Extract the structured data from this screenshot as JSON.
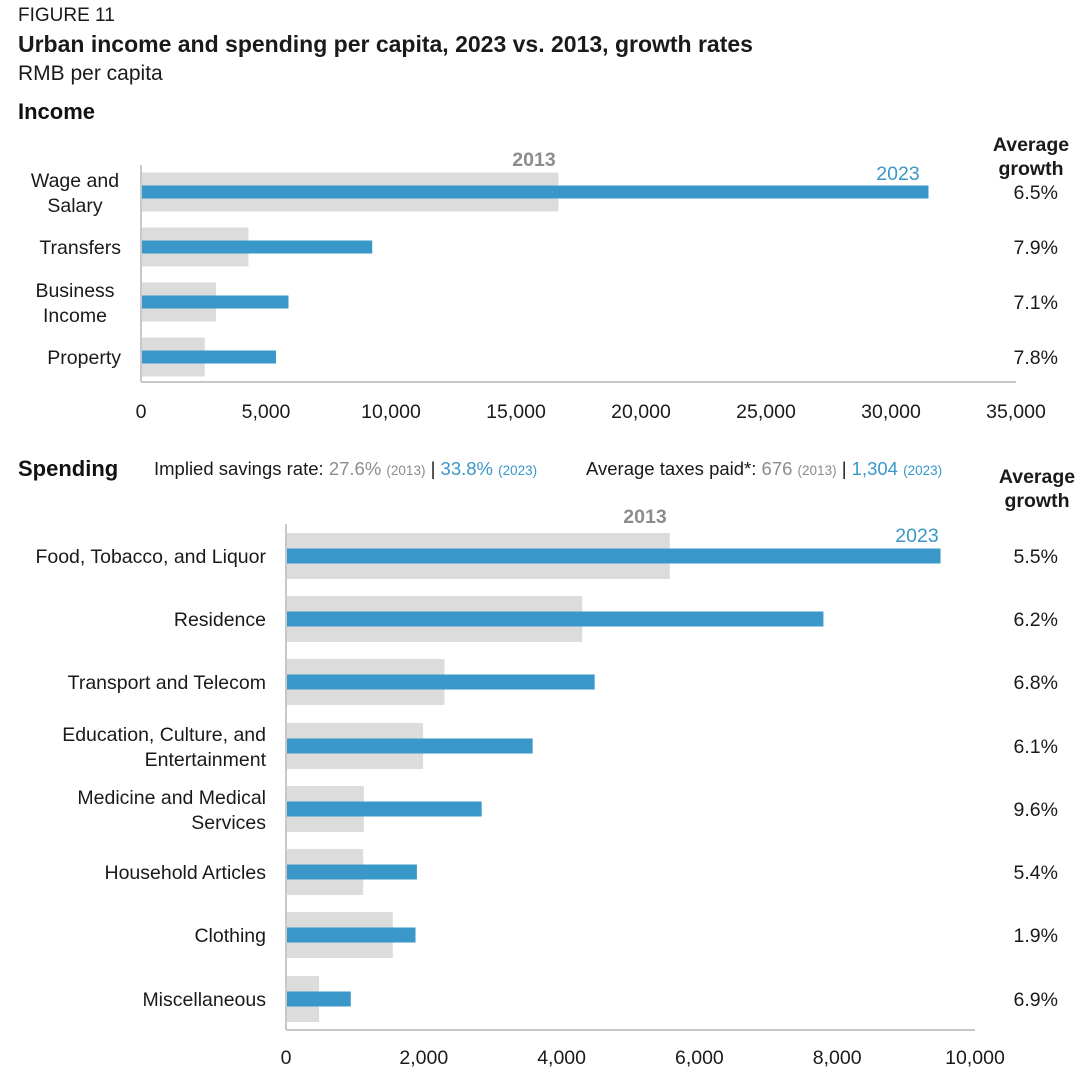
{
  "header": {
    "figure_label": "FIGURE 11",
    "title": "Urban income and spending per capita, 2023 vs. 2013, growth rates",
    "subtitle": "RMB per capita"
  },
  "colors": {
    "y2013": "#dcdcdc",
    "y2023": "#3a97c9",
    "label2013": "#8c8c8c"
  },
  "notes": {
    "savings_label": "Implied savings rate: ",
    "savings_2013": "27.6%",
    "savings_2023": "33.8%",
    "taxes_label": "Average taxes paid*: ",
    "taxes_2013": "676",
    "taxes_2023": "1,304",
    "tag_2013": "(2013)",
    "tag_2023": "(2023)",
    "separator": " | "
  },
  "chart_data": [
    {
      "type": "bar",
      "orientation": "horizontal",
      "title": "Income",
      "growth_header": [
        "Average",
        "growth"
      ],
      "series_labels": [
        "2013",
        "2023"
      ],
      "categories": [
        [
          "Wage and",
          "Salary"
        ],
        [
          "Transfers"
        ],
        [
          "Business",
          "Income"
        ],
        [
          "Property"
        ]
      ],
      "series": [
        {
          "name": "2013",
          "values": [
            16700,
            4300,
            3000,
            2550
          ]
        },
        {
          "name": "2023",
          "values": [
            31500,
            9250,
            5900,
            5400
          ]
        }
      ],
      "growth": [
        "6.5%",
        "7.9%",
        "7.1%",
        "7.8%"
      ],
      "xlim": [
        0,
        35000
      ],
      "ticks": [
        0,
        5000,
        10000,
        15000,
        20000,
        25000,
        30000,
        35000
      ],
      "tick_labels": [
        "0",
        "5,000",
        "10,000",
        "15,000",
        "20,000",
        "25,000",
        "30,000",
        "35,000"
      ]
    },
    {
      "type": "bar",
      "orientation": "horizontal",
      "title": "Spending",
      "growth_header": [
        "Average",
        "growth"
      ],
      "series_labels": [
        "2013",
        "2023"
      ],
      "categories": [
        [
          "Food, Tobacco, and Liquor"
        ],
        [
          "Residence"
        ],
        [
          "Transport and Telecom"
        ],
        [
          "Education, Culture, and",
          "Entertainment"
        ],
        [
          "Medicine and Medical",
          "Services"
        ],
        [
          "Household Articles"
        ],
        [
          "Clothing"
        ],
        [
          "Miscellaneous"
        ]
      ],
      "series": [
        {
          "name": "2013",
          "values": [
            5570,
            4300,
            2300,
            1990,
            1130,
            1120,
            1550,
            480
          ]
        },
        {
          "name": "2023",
          "values": [
            9500,
            7800,
            4480,
            3580,
            2840,
            1900,
            1880,
            940
          ]
        }
      ],
      "growth": [
        "5.5%",
        "6.2%",
        "6.8%",
        "6.1%",
        "9.6%",
        "5.4%",
        "1.9%",
        "6.9%"
      ],
      "xlim": [
        0,
        10000
      ],
      "ticks": [
        0,
        2000,
        4000,
        6000,
        8000,
        10000
      ],
      "tick_labels": [
        "0",
        "2,000",
        "4,000",
        "6,000",
        "8,000",
        "10,000"
      ]
    }
  ]
}
